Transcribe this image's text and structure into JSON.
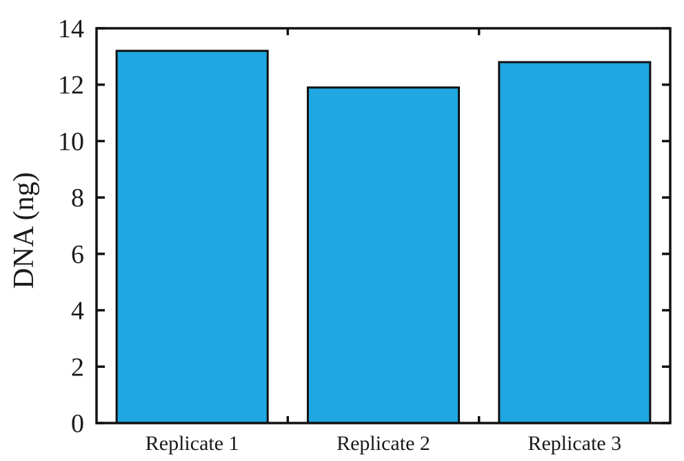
{
  "chart_data": {
    "type": "bar",
    "categories": [
      "Replicate 1",
      "Replicate 2",
      "Replicate 3"
    ],
    "values": [
      13.2,
      11.9,
      12.8
    ],
    "title": "",
    "xlabel": "",
    "ylabel": "DNA (ng)",
    "ylim": [
      0,
      14
    ],
    "yticks": [
      0,
      2,
      4,
      6,
      8,
      10,
      12,
      14
    ],
    "ytick_labels": [
      "0",
      "2",
      "4",
      "6",
      "8",
      "10",
      "12",
      "14"
    ],
    "grid": false,
    "legend": "none",
    "colors": {
      "bar_fill": "#1ea7e1",
      "bar_edge": "#111111",
      "axis": "#111111"
    }
  }
}
